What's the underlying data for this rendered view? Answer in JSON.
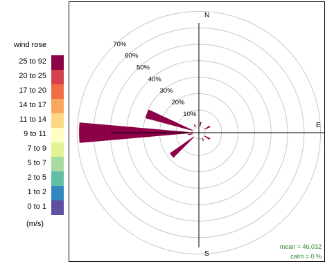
{
  "legend": {
    "title": "wind rose",
    "unit": "(m/s)",
    "bins": [
      {
        "label": "25 to 92",
        "color": "#8B0046"
      },
      {
        "label": "20 to 25",
        "color": "#D5404F"
      },
      {
        "label": "17 to 20",
        "color": "#F06C44"
      },
      {
        "label": "14 to 17",
        "color": "#F9A75D"
      },
      {
        "label": "11 to 14",
        "color": "#FDD884"
      },
      {
        "label": "9 to 11",
        "color": "#FFFFC2"
      },
      {
        "label": "7 to 9",
        "color": "#E2F396"
      },
      {
        "label": "5 to 7",
        "color": "#A8DBA2"
      },
      {
        "label": "2 to 5",
        "color": "#62BEA6"
      },
      {
        "label": "1 to 2",
        "color": "#3288BD"
      },
      {
        "label": "0 to 1",
        "color": "#5E4FA2"
      }
    ]
  },
  "stats": {
    "mean": "mean  =  46.032",
    "calm": "calm  =  0  %"
  },
  "chart_data": {
    "type": "wind-rose",
    "title": "",
    "directions_labeled": [
      "N",
      "E",
      "S"
    ],
    "radial_ticks": [
      {
        "value": 10,
        "label": "10%"
      },
      {
        "value": 20,
        "label": "20%"
      },
      {
        "value": 30,
        "label": "30%"
      },
      {
        "value": 40,
        "label": "40%"
      },
      {
        "value": 50,
        "label": "50%"
      },
      {
        "value": 60,
        "label": "60%"
      },
      {
        "value": 70,
        "label": "70%"
      }
    ],
    "rmax": 70,
    "sector_width_deg": 10,
    "sectors": [
      {
        "direction": 10,
        "percent": 3.0
      },
      {
        "direction": 60,
        "percent": 4.0
      },
      {
        "direction": 120,
        "percent": 4.0
      },
      {
        "direction": 150,
        "percent": 2.0
      },
      {
        "direction": 230,
        "percent": 18.0
      },
      {
        "direction": 260,
        "percent": 3.0
      },
      {
        "direction": 270,
        "percent": 69.0
      },
      {
        "direction": 290,
        "percent": 30.0
      },
      {
        "direction": 330,
        "percent": 2.0
      }
    ],
    "grid": true
  }
}
